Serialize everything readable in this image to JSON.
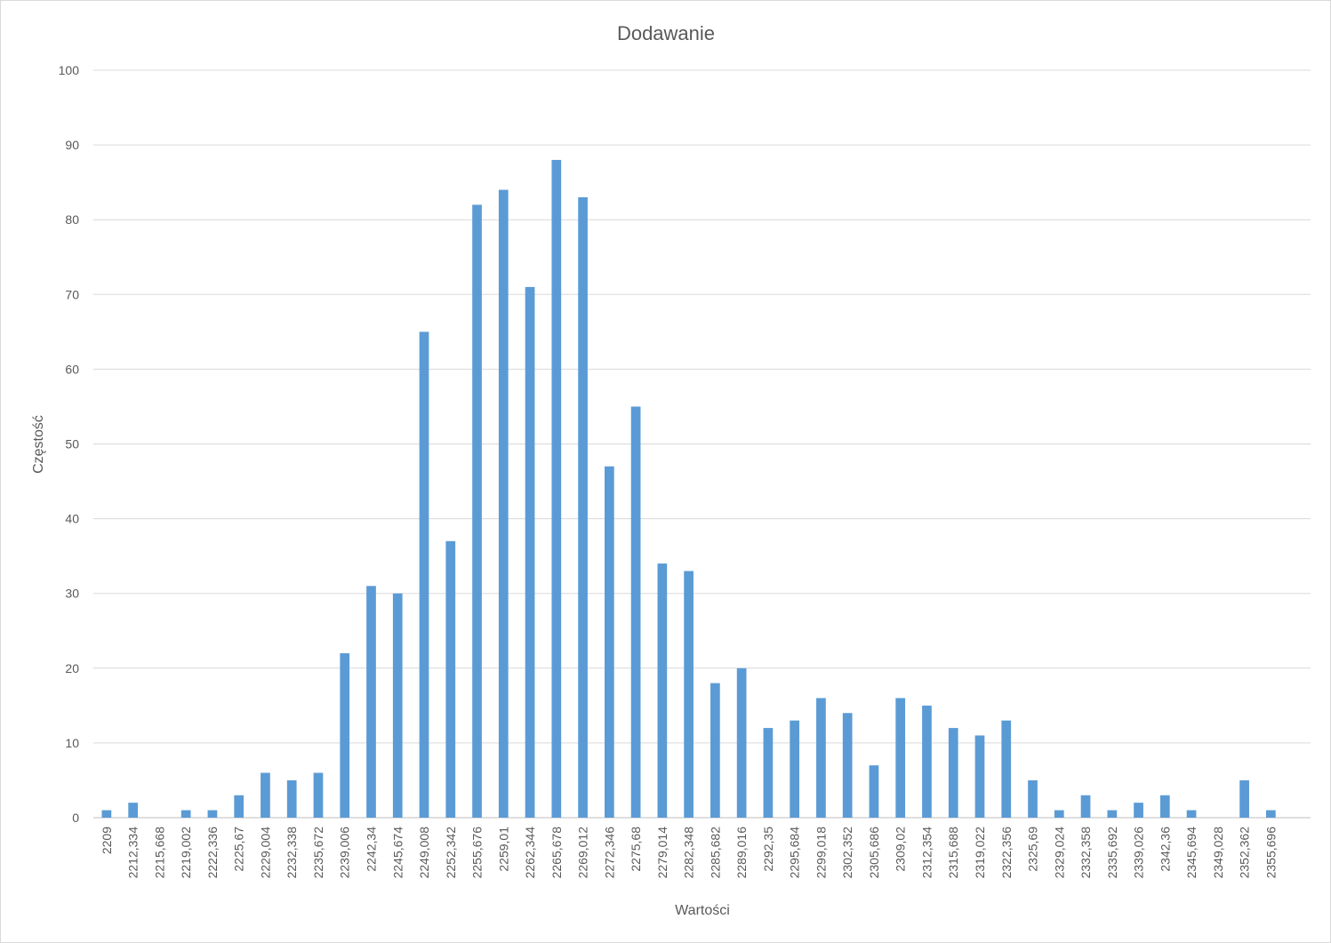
{
  "chart_data": {
    "type": "bar",
    "title": "Dodawanie",
    "xlabel": "Wartości",
    "ylabel": "Częstość",
    "ylim": [
      0,
      100
    ],
    "yticks": [
      0,
      10,
      20,
      30,
      40,
      50,
      60,
      70,
      80,
      90,
      100
    ],
    "grid": true,
    "legend": "none",
    "bar_color": "#5b9bd5",
    "categories": [
      "2209",
      "2212,334",
      "2215,668",
      "2219,002",
      "2222,336",
      "2225,67",
      "2229,004",
      "2232,338",
      "2235,672",
      "2239,006",
      "2242,34",
      "2245,674",
      "2249,008",
      "2252,342",
      "2255,676",
      "2259,01",
      "2262,344",
      "2265,678",
      "2269,012",
      "2272,346",
      "2275,68",
      "2279,014",
      "2282,348",
      "2285,682",
      "2289,016",
      "2292,35",
      "2295,684",
      "2299,018",
      "2302,352",
      "2305,686",
      "2309,02",
      "2312,354",
      "2315,688",
      "2319,022",
      "2322,356",
      "2325,69",
      "2329,024",
      "2332,358",
      "2335,692",
      "2339,026",
      "2342,36",
      "2345,694",
      "2349,028",
      "2352,362",
      "2355,696",
      ""
    ],
    "values": [
      1,
      2,
      0,
      1,
      1,
      3,
      6,
      5,
      6,
      22,
      31,
      30,
      65,
      37,
      82,
      84,
      71,
      88,
      83,
      47,
      55,
      34,
      33,
      18,
      20,
      12,
      13,
      16,
      14,
      7,
      16,
      15,
      12,
      11,
      13,
      5,
      1,
      3,
      1,
      2,
      3,
      1,
      0,
      5,
      1,
      0
    ]
  }
}
